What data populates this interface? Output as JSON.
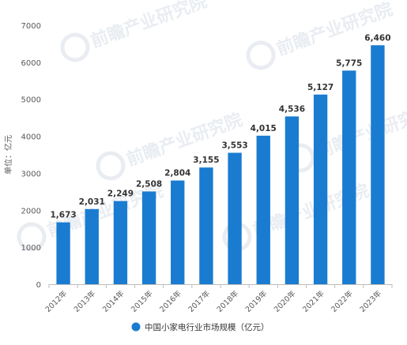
{
  "chart_data": {
    "type": "bar",
    "ylabel": "单位：亿元",
    "categories": [
      "2012年",
      "2013年",
      "2014年",
      "2015年",
      "2016年",
      "2017年",
      "2018年",
      "2019年",
      "2020年",
      "2021年",
      "2022年",
      "2023年"
    ],
    "series": [
      {
        "name": "中国小家电行业市场规模（亿元）",
        "values": [
          1673,
          2031,
          2249,
          2508,
          2804,
          3155,
          3553,
          4015,
          4536,
          5127,
          5775,
          6460
        ],
        "labels": [
          "1,673",
          "2,031",
          "2,249",
          "2,508",
          "2,804",
          "3,155",
          "3,553",
          "4,015",
          "4,536",
          "5,127",
          "5,775",
          "6,460"
        ]
      }
    ],
    "ylim": [
      0,
      7000
    ],
    "yticks": [
      0,
      1000,
      2000,
      3000,
      4000,
      5000,
      6000,
      7000
    ],
    "grid": false,
    "legend_position": "bottom-center",
    "colors": {
      "bar": "#1a7cd0",
      "axis": "#bdbdbd",
      "text": "#595959"
    },
    "watermark": "前瞻产业研究院"
  }
}
